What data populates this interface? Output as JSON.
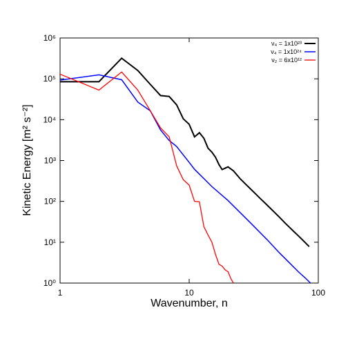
{
  "chart_data": {
    "type": "line",
    "xlabel": "Wavenumber, n",
    "ylabel": "Kinetic Energy [m² s⁻²]",
    "xscale": "log",
    "yscale": "log",
    "xlim": [
      1,
      100
    ],
    "ylim": [
      1,
      1000000
    ],
    "xticks": [
      1,
      10,
      100
    ],
    "yticks": [
      {
        "value": 1,
        "label": "10⁰"
      },
      {
        "value": 10,
        "label": "10¹"
      },
      {
        "value": 100,
        "label": "10²"
      },
      {
        "value": 1000,
        "label": "10³"
      },
      {
        "value": 10000,
        "label": "10⁴"
      },
      {
        "value": 100000,
        "label": "10⁵"
      },
      {
        "value": 1000000,
        "label": "10⁶"
      }
    ],
    "legend": "upper right",
    "series": [
      {
        "name": "ν₄ = 1x10²³",
        "color": "#000000",
        "x": [
          1,
          2,
          3,
          4,
          5,
          6,
          7,
          8,
          9,
          10,
          11,
          12,
          13,
          14,
          15,
          16,
          17,
          18,
          19,
          20,
          22,
          25,
          28,
          30,
          33,
          36,
          40,
          45,
          50,
          55,
          60,
          65,
          70,
          75,
          80,
          85
        ],
        "values": [
          85000,
          85000,
          320000,
          160000,
          73000,
          39000,
          37000,
          23000,
          10500,
          7700,
          3800,
          4800,
          3500,
          2000,
          1600,
          1200,
          800,
          600,
          650,
          700,
          560,
          350,
          246,
          199,
          148,
          113,
          82,
          57,
          41,
          30,
          23,
          18,
          14.4,
          11.6,
          9.5,
          7.8
        ]
      },
      {
        "name": "ν₄ = 1x10²⁴",
        "color": "#0000ff",
        "x": [
          1,
          2,
          3,
          4,
          5,
          6,
          7,
          8,
          10,
          11,
          15,
          20,
          30,
          40,
          50,
          60,
          70,
          80,
          87
        ],
        "values": [
          93000,
          125000,
          95000,
          27000,
          16500,
          5600,
          3100,
          2200,
          900,
          610,
          230,
          105,
          29.3,
          11.7,
          5.5,
          3.1,
          1.9,
          1.3,
          1
        ]
      },
      {
        "name": "ν₂ = 6x10¹²",
        "color": "#ff0000",
        "x": [
          1,
          2,
          3,
          4,
          5,
          6,
          7,
          8,
          9,
          10,
          11,
          12,
          13,
          14,
          15,
          16,
          17,
          18,
          19,
          20,
          21,
          22
        ],
        "values": [
          130000,
          53000,
          147000,
          53000,
          16500,
          6300,
          3800,
          740,
          340,
          250,
          100,
          98,
          24,
          15,
          10,
          5,
          2.9,
          2.6,
          2.1,
          1.9,
          1.3,
          1
        ]
      }
    ]
  }
}
